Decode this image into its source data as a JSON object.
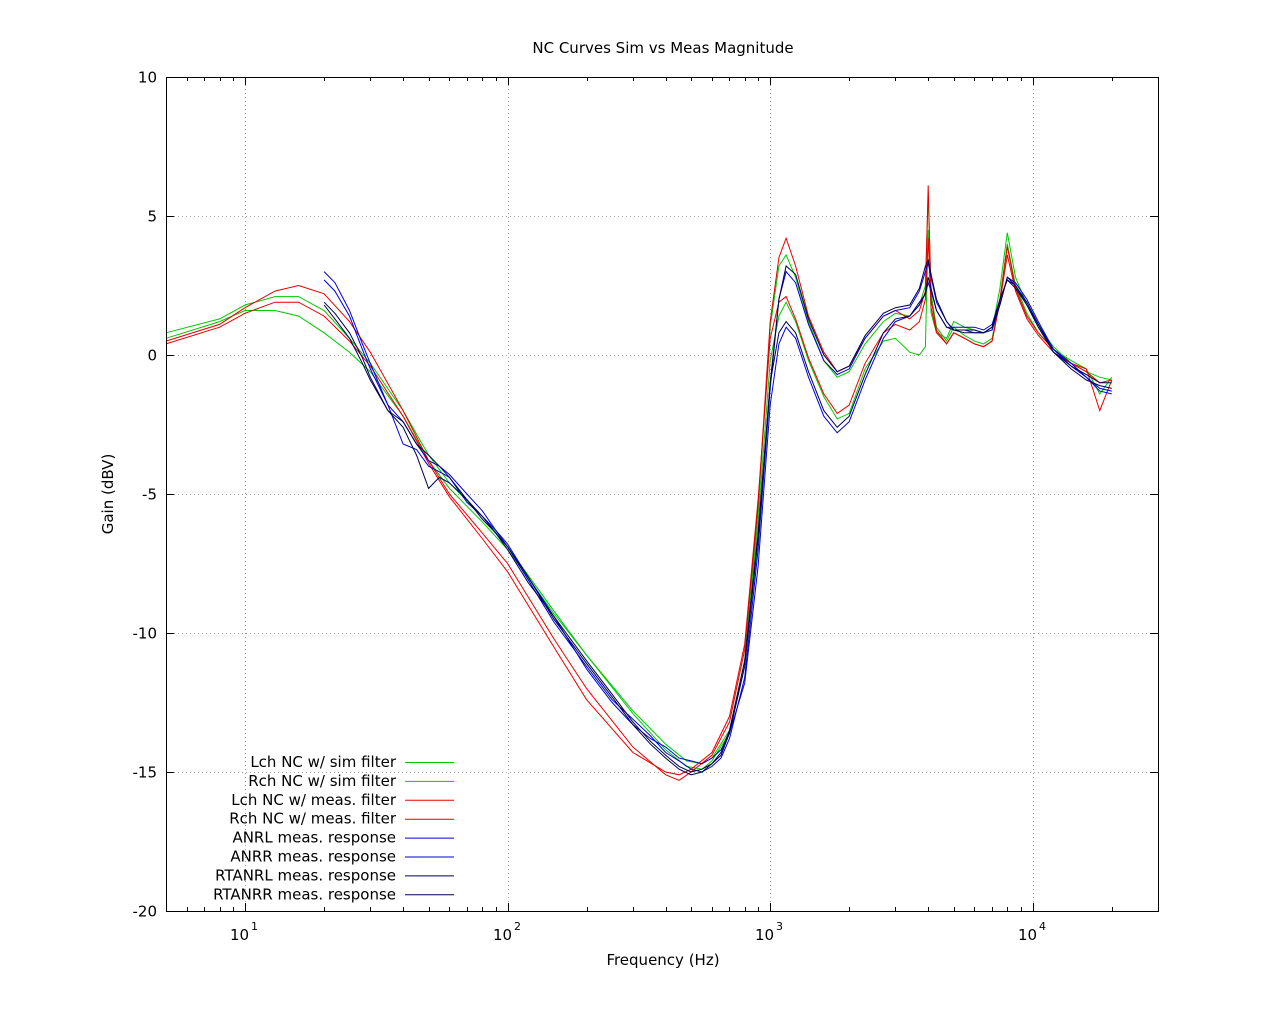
{
  "chart_data": {
    "type": "line",
    "title": "NC Curves Sim vs Meas Magnitude",
    "xlabel": "Frequency (Hz)",
    "ylabel": "Gain (dBV)",
    "xscale": "log",
    "xlim": [
      5,
      30000
    ],
    "ylim": [
      -20,
      10
    ],
    "yticks": [
      10,
      5,
      0,
      -5,
      -10,
      -15,
      -20
    ],
    "ytick_labels": [
      "10",
      "5",
      "0",
      "-5",
      "-10",
      "-15",
      "-20"
    ],
    "xticks": [
      10,
      100,
      1000,
      10000
    ],
    "xtick_labels": [
      {
        "base": "10",
        "exp": "1"
      },
      {
        "base": "10",
        "exp": "2"
      },
      {
        "base": "10",
        "exp": "3"
      },
      {
        "base": "10",
        "exp": "4"
      }
    ],
    "grid": true,
    "legend_position": "bottom-left",
    "series": [
      {
        "name": "Lch NC w/ sim filter",
        "color": "#00c800",
        "x": [
          5,
          8,
          10,
          13,
          16,
          20,
          25,
          30,
          40,
          50,
          60,
          80,
          100,
          150,
          200,
          300,
          400,
          480,
          550,
          600,
          700,
          800,
          900,
          1000,
          1080,
          1150,
          1250,
          1400,
          1600,
          1800,
          2000,
          2300,
          2700,
          3000,
          3400,
          3700,
          3900,
          4000,
          4100,
          4300,
          4700,
          5000,
          5500,
          6000,
          6500,
          7000,
          7500,
          8000,
          8600,
          9500,
          10500,
          12000,
          14000,
          16000,
          18000,
          20000
        ],
        "y": [
          0.6,
          1.2,
          1.6,
          1.6,
          1.4,
          0.8,
          0.1,
          -0.6,
          -2.2,
          -3.8,
          -4.8,
          -6.0,
          -7.0,
          -9.3,
          -10.8,
          -12.8,
          -14.0,
          -14.6,
          -14.7,
          -14.5,
          -13.5,
          -11.0,
          -6.0,
          -0.2,
          1.4,
          1.9,
          1.2,
          -0.2,
          -1.5,
          -2.3,
          -2.1,
          -0.5,
          0.5,
          0.6,
          0.1,
          0.0,
          0.3,
          4.5,
          1.5,
          0.8,
          0.6,
          1.2,
          1.0,
          0.9,
          0.8,
          0.9,
          2.4,
          4.4,
          2.8,
          1.8,
          1.0,
          0.3,
          -0.3,
          -0.6,
          -0.8,
          -0.9
        ]
      },
      {
        "name": "Rch NC w/ sim filter",
        "color": "#00c800",
        "x": [
          5,
          8,
          10,
          13,
          16,
          20,
          25,
          30,
          40,
          50,
          60,
          80,
          100,
          150,
          200,
          300,
          400,
          480,
          550,
          600,
          700,
          800,
          900,
          1000,
          1080,
          1150,
          1250,
          1400,
          1600,
          1800,
          2000,
          2300,
          2700,
          3000,
          3400,
          3700,
          3900,
          4000,
          4100,
          4300,
          4700,
          5000,
          5500,
          6000,
          6500,
          7000,
          7500,
          8000,
          8600,
          9500,
          10500,
          12000,
          14000,
          16000,
          18000,
          20000
        ],
        "y": [
          0.8,
          1.3,
          1.8,
          2.1,
          2.1,
          1.6,
          0.6,
          -0.3,
          -2.0,
          -3.6,
          -4.6,
          -5.8,
          -6.9,
          -9.2,
          -10.8,
          -12.9,
          -14.2,
          -14.8,
          -14.9,
          -14.6,
          -13.6,
          -11.0,
          -5.6,
          1.0,
          3.2,
          3.6,
          2.8,
          1.2,
          -0.2,
          -0.8,
          -0.6,
          0.4,
          1.2,
          1.5,
          1.4,
          1.8,
          2.5,
          5.8,
          2.2,
          1.0,
          0.5,
          1.0,
          0.7,
          0.5,
          0.4,
          0.6,
          2.0,
          4.0,
          2.5,
          1.5,
          0.8,
          0.2,
          -0.2,
          -0.5,
          -1.4,
          -0.8
        ]
      },
      {
        "name": "Lch NC w/ meas. filter",
        "color": "#e80000",
        "x": [
          5,
          8,
          10,
          13,
          16,
          20,
          25,
          30,
          40,
          50,
          60,
          80,
          100,
          150,
          200,
          300,
          400,
          450,
          500,
          600,
          700,
          800,
          900,
          1000,
          1080,
          1150,
          1250,
          1400,
          1600,
          1800,
          2000,
          2300,
          2700,
          3000,
          3400,
          3700,
          3900,
          4000,
          4100,
          4300,
          4700,
          5000,
          5500,
          6000,
          6500,
          7000,
          7500,
          8000,
          8600,
          9500,
          10500,
          12000,
          14000,
          16000,
          18000,
          20000
        ],
        "y": [
          0.5,
          1.1,
          1.7,
          2.3,
          2.5,
          2.2,
          1.2,
          0.1,
          -2.0,
          -3.8,
          -5.0,
          -6.4,
          -7.5,
          -10.2,
          -12.0,
          -14.1,
          -15.1,
          -15.3,
          -15.0,
          -14.4,
          -13.2,
          -10.6,
          -5.4,
          1.2,
          3.5,
          4.2,
          3.2,
          1.4,
          0.1,
          -0.6,
          -0.4,
          0.6,
          1.4,
          1.6,
          1.3,
          1.6,
          2.3,
          6.1,
          2.0,
          0.9,
          0.4,
          0.8,
          0.6,
          0.4,
          0.3,
          0.5,
          2.0,
          3.9,
          2.4,
          1.4,
          0.8,
          0.2,
          -0.3,
          -0.5,
          -2.0,
          -0.9
        ]
      },
      {
        "name": "Rch NC w/ meas. filter",
        "color": "#e80000",
        "x": [
          5,
          8,
          10,
          13,
          16,
          20,
          25,
          30,
          40,
          50,
          60,
          80,
          100,
          150,
          200,
          300,
          400,
          450,
          500,
          600,
          700,
          800,
          900,
          1000,
          1080,
          1150,
          1250,
          1400,
          1600,
          1800,
          2000,
          2300,
          2700,
          3000,
          3400,
          3700,
          3900,
          4000,
          4100,
          4300,
          4700,
          5000,
          5500,
          6000,
          6500,
          7000,
          7500,
          8000,
          8600,
          9500,
          10500,
          12000,
          14000,
          16000,
          18000,
          20000
        ],
        "y": [
          0.4,
          1.0,
          1.5,
          1.9,
          1.9,
          1.4,
          0.5,
          -0.4,
          -2.2,
          -3.9,
          -5.1,
          -6.6,
          -7.8,
          -10.5,
          -12.4,
          -14.3,
          -15.0,
          -15.1,
          -14.9,
          -14.3,
          -13.0,
          -10.4,
          -5.2,
          0.6,
          1.9,
          2.1,
          1.3,
          -0.1,
          -1.4,
          -2.1,
          -1.8,
          -0.3,
          0.8,
          1.1,
          0.9,
          1.2,
          2.0,
          4.2,
          1.7,
          0.8,
          0.4,
          0.8,
          0.6,
          0.4,
          0.3,
          0.5,
          1.9,
          3.6,
          2.3,
          1.3,
          0.7,
          0.1,
          -0.3,
          -0.6,
          -1.0,
          -0.9
        ]
      },
      {
        "name": "ANRL meas. response",
        "color": "#0000d8",
        "x": [
          20,
          22,
          25,
          28,
          30,
          35,
          40,
          45,
          50,
          55,
          60,
          70,
          80,
          90,
          100,
          120,
          150,
          200,
          250,
          300,
          350,
          400,
          450,
          500,
          550,
          600,
          650,
          700,
          800,
          900,
          1000,
          1080,
          1150,
          1250,
          1400,
          1600,
          1800,
          2000,
          2300,
          2700,
          3000,
          3400,
          3700,
          3900,
          4000,
          4100,
          4300,
          4700,
          5000,
          5500,
          6000,
          6500,
          7000,
          7500,
          8000,
          8600,
          9500,
          10500,
          12000,
          14000,
          16000,
          18000,
          20000
        ],
        "y": [
          3.0,
          2.6,
          1.6,
          0.4,
          -0.3,
          -1.8,
          -3.2,
          -3.4,
          -4.0,
          -4.2,
          -4.4,
          -5.3,
          -5.8,
          -6.3,
          -6.8,
          -8.0,
          -9.4,
          -11.3,
          -12.5,
          -13.3,
          -13.8,
          -14.1,
          -14.5,
          -14.6,
          -14.7,
          -14.5,
          -14.2,
          -13.6,
          -11.8,
          -7.6,
          -1.8,
          0.4,
          1.0,
          0.6,
          -0.8,
          -2.2,
          -2.8,
          -2.4,
          -0.9,
          0.6,
          1.2,
          1.4,
          1.9,
          2.2,
          2.6,
          2.3,
          1.6,
          1.0,
          1.0,
          1.0,
          1.0,
          0.9,
          1.1,
          2.0,
          2.7,
          2.5,
          1.8,
          1.1,
          0.2,
          -0.4,
          -0.8,
          -1.2,
          -1.3
        ]
      },
      {
        "name": "ANRR meas. response",
        "color": "#0000d8",
        "x": [
          20,
          22,
          25,
          28,
          30,
          35,
          40,
          45,
          50,
          55,
          60,
          70,
          80,
          90,
          100,
          120,
          150,
          200,
          250,
          300,
          350,
          400,
          450,
          500,
          550,
          600,
          650,
          700,
          800,
          900,
          1000,
          1080,
          1150,
          1250,
          1400,
          1600,
          1800,
          2000,
          2300,
          2700,
          3000,
          3400,
          3700,
          3900,
          4000,
          4100,
          4300,
          4700,
          5000,
          5500,
          6000,
          6500,
          7000,
          7500,
          8000,
          8600,
          9500,
          10500,
          12000,
          14000,
          16000,
          18000,
          20000
        ],
        "y": [
          2.7,
          2.3,
          1.4,
          0.2,
          -0.5,
          -1.8,
          -2.4,
          -3.2,
          -3.8,
          -4.0,
          -4.3,
          -5.0,
          -5.6,
          -6.3,
          -6.9,
          -8.1,
          -9.6,
          -11.2,
          -12.4,
          -13.1,
          -13.7,
          -14.3,
          -14.6,
          -14.9,
          -15.0,
          -14.8,
          -14.5,
          -13.8,
          -11.6,
          -7.0,
          -1.2,
          2.0,
          3.0,
          2.6,
          1.1,
          -0.2,
          -0.7,
          -0.5,
          0.6,
          1.4,
          1.6,
          1.7,
          2.3,
          3.0,
          3.3,
          2.8,
          1.9,
          1.2,
          0.9,
          0.9,
          0.8,
          0.8,
          0.9,
          1.8,
          2.8,
          2.6,
          2.0,
          1.2,
          0.2,
          -0.3,
          -0.8,
          -1.3,
          -1.4
        ]
      },
      {
        "name": "RTANRL meas. response",
        "color": "#000050",
        "x": [
          20,
          22,
          25,
          28,
          30,
          35,
          40,
          45,
          50,
          55,
          60,
          70,
          80,
          90,
          100,
          120,
          150,
          200,
          250,
          300,
          350,
          400,
          450,
          500,
          550,
          600,
          650,
          700,
          800,
          900,
          1000,
          1080,
          1150,
          1250,
          1400,
          1600,
          1800,
          2000,
          2300,
          2700,
          3000,
          3400,
          3700,
          3900,
          4000,
          4100,
          4300,
          4700,
          5000,
          5500,
          6000,
          6500,
          7000,
          7500,
          8000,
          8600,
          9500,
          10500,
          12000,
          14000,
          16000,
          18000,
          20000
        ],
        "y": [
          1.8,
          1.3,
          0.6,
          -0.3,
          -0.9,
          -2.0,
          -2.6,
          -3.6,
          -4.8,
          -4.4,
          -4.6,
          -5.2,
          -5.8,
          -6.4,
          -7.0,
          -8.2,
          -9.4,
          -11.0,
          -12.2,
          -13.2,
          -13.9,
          -14.4,
          -14.8,
          -15.0,
          -14.9,
          -14.7,
          -14.3,
          -13.5,
          -11.0,
          -6.4,
          -1.0,
          0.8,
          1.2,
          0.8,
          -0.6,
          -2.0,
          -2.6,
          -2.2,
          -0.7,
          0.8,
          1.3,
          1.4,
          1.8,
          2.2,
          2.8,
          2.4,
          1.6,
          1.0,
          0.9,
          0.9,
          0.9,
          0.8,
          1.0,
          2.0,
          2.7,
          2.4,
          1.8,
          1.0,
          0.1,
          -0.5,
          -0.9,
          -1.1,
          -1.2
        ]
      },
      {
        "name": "RTANRR meas. response",
        "color": "#000050",
        "x": [
          20,
          22,
          25,
          28,
          30,
          35,
          40,
          45,
          50,
          55,
          60,
          70,
          80,
          90,
          100,
          120,
          150,
          200,
          250,
          300,
          350,
          400,
          450,
          500,
          550,
          600,
          650,
          700,
          800,
          900,
          1000,
          1080,
          1150,
          1250,
          1400,
          1600,
          1800,
          2000,
          2300,
          2700,
          3000,
          3400,
          3700,
          3900,
          4000,
          4100,
          4300,
          4700,
          5000,
          5500,
          6000,
          6500,
          7000,
          7500,
          8000,
          8600,
          9500,
          10500,
          12000,
          14000,
          16000,
          18000,
          20000
        ],
        "y": [
          1.9,
          1.5,
          0.8,
          -0.1,
          -0.8,
          -2.0,
          -2.4,
          -3.2,
          -3.6,
          -4.0,
          -4.4,
          -5.2,
          -5.9,
          -6.4,
          -6.9,
          -8.0,
          -9.5,
          -11.1,
          -12.3,
          -13.3,
          -14.0,
          -14.5,
          -14.9,
          -15.1,
          -15.0,
          -14.7,
          -14.4,
          -13.6,
          -11.2,
          -6.6,
          -1.0,
          2.0,
          3.2,
          2.9,
          1.3,
          0.0,
          -0.6,
          -0.4,
          0.7,
          1.5,
          1.7,
          1.8,
          2.4,
          3.2,
          3.4,
          2.9,
          2.0,
          1.2,
          0.9,
          0.8,
          0.8,
          0.8,
          1.0,
          1.8,
          2.8,
          2.5,
          1.9,
          1.1,
          0.1,
          -0.4,
          -0.7,
          -1.0,
          -1.0
        ]
      }
    ]
  }
}
